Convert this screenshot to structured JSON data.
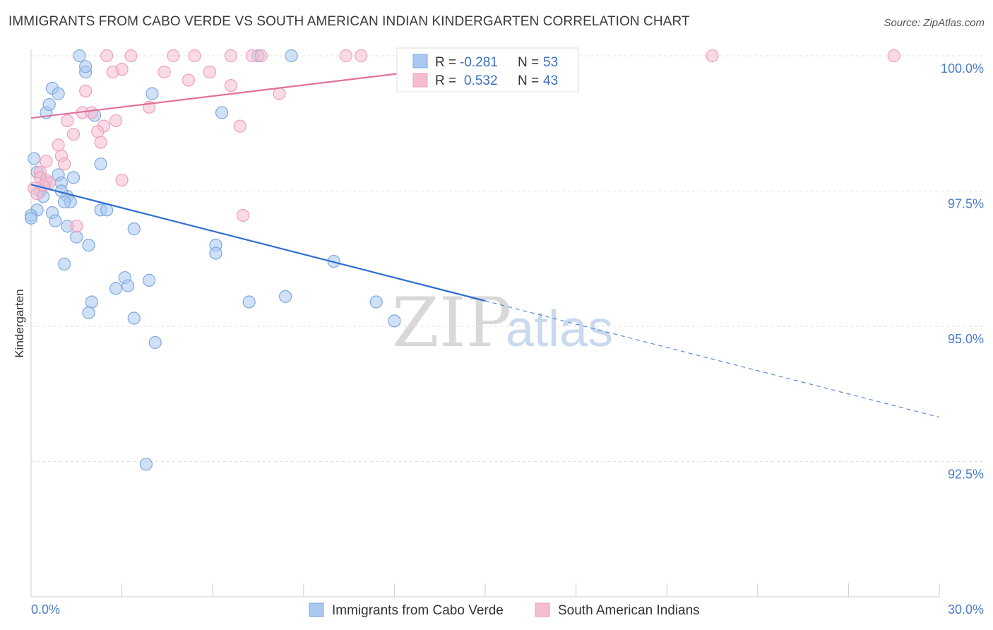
{
  "title": "IMMIGRANTS FROM CABO VERDE VS SOUTH AMERICAN INDIAN KINDERGARTEN CORRELATION CHART",
  "source": "Source: ZipAtlas.com",
  "watermark": {
    "part1": "ZIP",
    "part2": "atlas"
  },
  "colors": {
    "blue_fill": "#aac8f0",
    "blue_stroke": "#7ea8e0",
    "blue_line": "#2e6fd0",
    "pink_fill": "#f6bdd0",
    "pink_stroke": "#ee9fbc",
    "pink_line": "#e0709a",
    "grid": "#e2e2e2",
    "axis_label": "#4a7cc9"
  },
  "legend": {
    "rows": [
      {
        "r_label": "R =",
        "r_value": "-0.281",
        "n_label": "N =",
        "n_value": "53"
      },
      {
        "r_label": "R =",
        "r_value": "0.532",
        "n_label": "N =",
        "n_value": "43"
      }
    ]
  },
  "chart_data": {
    "type": "scatter",
    "title": "IMMIGRANTS FROM CABO VERDE VS SOUTH AMERICAN INDIAN KINDERGARTEN CORRELATION CHART",
    "xlabel": "",
    "ylabel": "Kindergarten",
    "xlim": [
      0.0,
      30.0
    ],
    "ylim": [
      90.2,
      100.3
    ],
    "x_tick_labels": [
      "0.0%",
      "30.0%"
    ],
    "y_ticks": [
      100.0,
      97.5,
      95.0,
      92.5
    ],
    "y_tick_labels": [
      "100.0%",
      "97.5%",
      "95.0%",
      "92.5%"
    ],
    "series": [
      {
        "name": "Immigrants from Cabo Verde",
        "color": "blue",
        "r": -0.281,
        "n": 53,
        "trend": {
          "x_start": 0.0,
          "y_start": 97.62,
          "x_solid_end": 15.0,
          "y_solid_end": 95.47,
          "x_dash_end": 30.0,
          "y_dash_end": 93.32
        },
        "points": [
          [
            1.6,
            100.0
          ],
          [
            1.8,
            99.7
          ],
          [
            1.8,
            99.8
          ],
          [
            7.5,
            100.0
          ],
          [
            8.6,
            100.0
          ],
          [
            0.7,
            99.4
          ],
          [
            0.9,
            99.3
          ],
          [
            4.0,
            99.3
          ],
          [
            0.5,
            98.95
          ],
          [
            0.6,
            99.1
          ],
          [
            2.1,
            98.9
          ],
          [
            6.3,
            98.95
          ],
          [
            0.1,
            98.1
          ],
          [
            2.3,
            98.0
          ],
          [
            0.2,
            97.85
          ],
          [
            0.9,
            97.8
          ],
          [
            1.4,
            97.75
          ],
          [
            0.5,
            97.65
          ],
          [
            1.0,
            97.65
          ],
          [
            0.3,
            97.5
          ],
          [
            1.2,
            97.4
          ],
          [
            0.4,
            97.4
          ],
          [
            1.3,
            97.3
          ],
          [
            1.1,
            97.3
          ],
          [
            0.2,
            97.15
          ],
          [
            0.7,
            97.1
          ],
          [
            2.3,
            97.15
          ],
          [
            2.5,
            97.15
          ],
          [
            0.0,
            97.05
          ],
          [
            0.8,
            96.95
          ],
          [
            1.2,
            96.85
          ],
          [
            3.4,
            96.8
          ],
          [
            1.5,
            96.65
          ],
          [
            6.1,
            96.5
          ],
          [
            1.9,
            96.5
          ],
          [
            6.1,
            96.35
          ],
          [
            10.0,
            96.2
          ],
          [
            1.1,
            96.15
          ],
          [
            3.1,
            95.9
          ],
          [
            3.9,
            95.85
          ],
          [
            3.2,
            95.75
          ],
          [
            2.8,
            95.7
          ],
          [
            7.2,
            95.45
          ],
          [
            8.4,
            95.55
          ],
          [
            11.4,
            95.45
          ],
          [
            2.0,
            95.45
          ],
          [
            1.9,
            95.25
          ],
          [
            3.4,
            95.15
          ],
          [
            12.0,
            95.1
          ],
          [
            4.1,
            94.7
          ],
          [
            3.8,
            92.45
          ],
          [
            0.0,
            97.0
          ],
          [
            1.0,
            97.5
          ]
        ]
      },
      {
        "name": "South American Indians",
        "color": "pink",
        "r": 0.532,
        "n": 43,
        "trend": {
          "x_start": 0.0,
          "y_start": 98.85,
          "x_end": 17.0,
          "y_end": 100.0
        },
        "points": [
          [
            2.5,
            100.0
          ],
          [
            3.3,
            100.0
          ],
          [
            4.7,
            100.0
          ],
          [
            5.4,
            100.0
          ],
          [
            6.6,
            100.0
          ],
          [
            7.3,
            100.0
          ],
          [
            7.6,
            100.0
          ],
          [
            10.4,
            100.0
          ],
          [
            10.9,
            100.0
          ],
          [
            22.5,
            100.0
          ],
          [
            28.5,
            100.0
          ],
          [
            3.0,
            99.75
          ],
          [
            2.7,
            99.7
          ],
          [
            4.4,
            99.7
          ],
          [
            5.9,
            99.7
          ],
          [
            5.2,
            99.55
          ],
          [
            6.6,
            99.45
          ],
          [
            1.8,
            99.35
          ],
          [
            8.2,
            99.3
          ],
          [
            3.9,
            99.05
          ],
          [
            1.7,
            98.95
          ],
          [
            2.0,
            98.95
          ],
          [
            1.2,
            98.8
          ],
          [
            2.8,
            98.8
          ],
          [
            6.9,
            98.7
          ],
          [
            2.4,
            98.7
          ],
          [
            2.2,
            98.6
          ],
          [
            1.4,
            98.55
          ],
          [
            2.3,
            98.4
          ],
          [
            0.9,
            98.35
          ],
          [
            1.0,
            98.15
          ],
          [
            0.5,
            98.05
          ],
          [
            1.1,
            98.0
          ],
          [
            0.3,
            97.85
          ],
          [
            0.3,
            97.75
          ],
          [
            0.5,
            97.7
          ],
          [
            3.0,
            97.7
          ],
          [
            0.6,
            97.65
          ],
          [
            0.1,
            97.55
          ],
          [
            0.2,
            97.45
          ],
          [
            7.0,
            97.05
          ],
          [
            1.5,
            96.85
          ],
          [
            0.4,
            97.6
          ]
        ]
      }
    ],
    "legend_position": "top-center"
  }
}
